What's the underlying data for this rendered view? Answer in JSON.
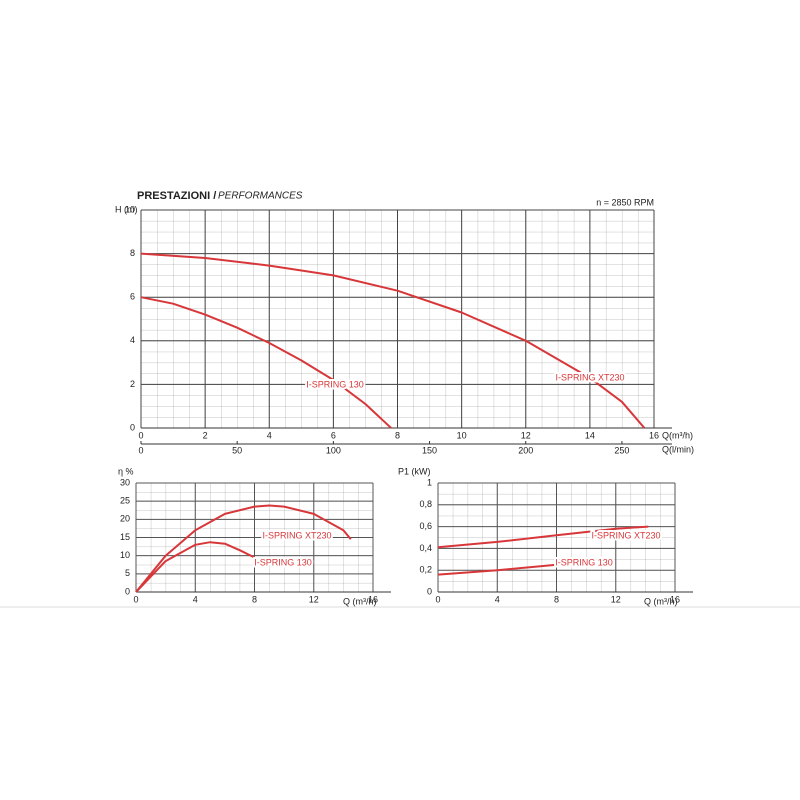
{
  "chart_data": [
    {
      "type": "line",
      "title": "PRESTAZIONI /",
      "title_en": "PERFORMANCES",
      "annotation": "n = 2850 RPM",
      "y_label": "H (m)",
      "x_label": "Q(m³/h)",
      "x2_label": "Q(l/min)",
      "xlim": [
        0,
        16
      ],
      "xticks": [
        0,
        2,
        4,
        6,
        8,
        10,
        12,
        14,
        16
      ],
      "x2lim": [
        0,
        266.67
      ],
      "x2ticks": [
        0,
        50,
        100,
        150,
        200,
        250
      ],
      "ylim": [
        0,
        10
      ],
      "yticks": [
        0,
        2,
        4,
        6,
        8,
        10
      ],
      "grid": true,
      "series": [
        {
          "name": "I-SPRING 130",
          "color": "#d8373a",
          "x": [
            0,
            1,
            2,
            3,
            4,
            5,
            6,
            7,
            7.8
          ],
          "values": [
            6,
            5.7,
            5.2,
            4.6,
            3.9,
            3.1,
            2.2,
            1.1,
            0
          ]
        },
        {
          "name": "I-SPRING XT230",
          "color": "#d8373a",
          "x": [
            0,
            2,
            4,
            6,
            8,
            10,
            12,
            14,
            15,
            15.7
          ],
          "values": [
            8,
            7.8,
            7.45,
            7.0,
            6.3,
            5.3,
            4.0,
            2.3,
            1.2,
            0
          ]
        }
      ]
    },
    {
      "type": "line",
      "y_label": "η %",
      "x_label": "Q (m³/h)",
      "xlim": [
        0,
        16
      ],
      "xticks": [
        0,
        4,
        8,
        12,
        16
      ],
      "ylim": [
        0,
        30
      ],
      "yticks": [
        0,
        5,
        10,
        15,
        20,
        25,
        30
      ],
      "grid": true,
      "series": [
        {
          "name": "I-SPRING XT230",
          "color": "#d8373a",
          "x": [
            0,
            2,
            4,
            6,
            8,
            9,
            10,
            12,
            14,
            14.5
          ],
          "values": [
            0,
            10,
            17,
            21.5,
            23.5,
            23.8,
            23.5,
            21.5,
            17,
            14.5
          ]
        },
        {
          "name": "I-SPRING 130",
          "color": "#d8373a",
          "x": [
            0,
            2,
            4,
            5,
            6,
            7,
            8
          ],
          "values": [
            0,
            8.5,
            13,
            13.7,
            13.3,
            11.5,
            9.5
          ]
        }
      ]
    },
    {
      "type": "line",
      "y_label": "P1 (kW)",
      "x_label": "Q (m³/h)",
      "xlim": [
        0,
        16
      ],
      "xticks": [
        0,
        4,
        8,
        12,
        16
      ],
      "ylim": [
        0,
        1
      ],
      "yticks": [
        0,
        {
          "value": 0.2,
          "label": "0,2"
        },
        {
          "value": 0.4,
          "label": "0,4"
        },
        {
          "value": 0.6,
          "label": "0,6"
        },
        {
          "value": 0.8,
          "label": "0,8"
        },
        1
      ],
      "grid": true,
      "series": [
        {
          "name": "I-SPRING XT230",
          "color": "#d8373a",
          "x": [
            0,
            4,
            8,
            12,
            14.2
          ],
          "values": [
            0.41,
            0.46,
            0.52,
            0.58,
            0.6
          ]
        },
        {
          "name": "I-SPRING 130",
          "color": "#d8373a",
          "x": [
            0,
            4,
            8
          ],
          "values": [
            0.16,
            0.2,
            0.25
          ]
        }
      ]
    }
  ]
}
